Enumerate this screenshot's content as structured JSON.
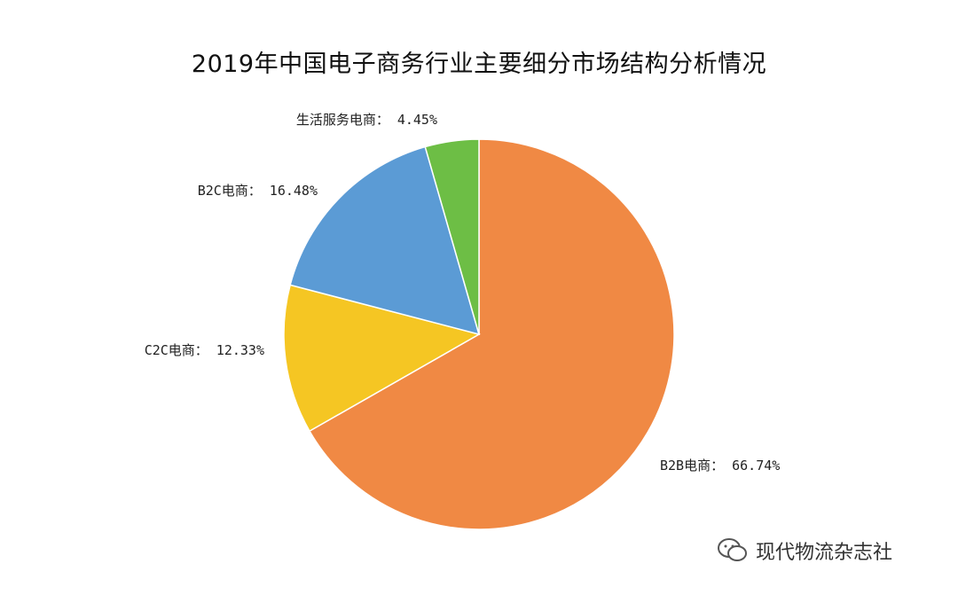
{
  "chart_data": {
    "type": "pie",
    "title": "2019年中国电子商务行业主要细分市场结构分析情况",
    "label_separator": "：",
    "slices": [
      {
        "name": "B2B电商",
        "value": 66.74,
        "label": "66.74%",
        "color": "#F08944"
      },
      {
        "name": "C2C电商",
        "value": 12.33,
        "label": "12.33%",
        "color": "#F5C623"
      },
      {
        "name": "B2C电商",
        "value": 16.48,
        "label": "16.48%",
        "color": "#5B9BD5"
      },
      {
        "name": "生活服务电商",
        "value": 4.45,
        "label": "4.45%",
        "color": "#6DBE45"
      }
    ]
  },
  "watermark": {
    "text": "现代物流杂志社",
    "icon": "wechat-icon"
  }
}
